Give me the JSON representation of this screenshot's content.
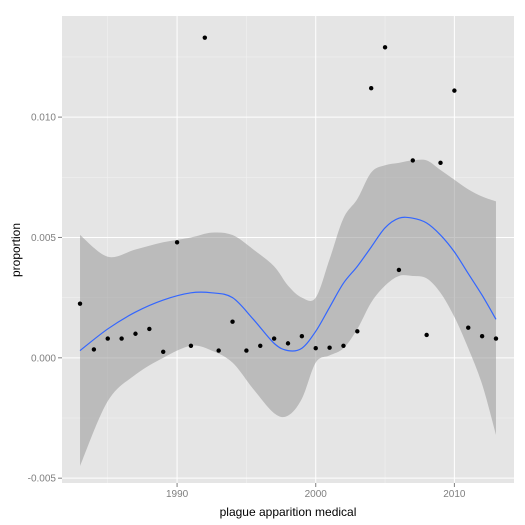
{
  "chart_data": {
    "type": "scatter",
    "title": "",
    "xlabel": "plague apparition medical",
    "ylabel": "proportion",
    "xlim": [
      1981.7,
      2014.3
    ],
    "ylim": [
      -0.0052,
      0.0142
    ],
    "x_ticks": [
      1990,
      2000,
      2010
    ],
    "x_tick_labels": [
      "1990",
      "2000",
      "2010"
    ],
    "y_ticks": [
      -0.005,
      0.0,
      0.005,
      0.01
    ],
    "y_tick_labels": [
      "-0.005",
      "0.000",
      "0.005",
      "0.010"
    ],
    "grid": true,
    "legend": "none",
    "points": {
      "x": [
        1983,
        1984,
        1985,
        1986,
        1987,
        1988,
        1989,
        1990,
        1991,
        1992,
        1993,
        1994,
        1995,
        1996,
        1997,
        1998,
        1999,
        2000,
        2001,
        2002,
        2003,
        2004,
        2005,
        2006,
        2007,
        2008,
        2009,
        2010,
        2011,
        2012,
        2013
      ],
      "y": [
        0.00225,
        0.00035,
        0.0008,
        0.0008,
        0.001,
        0.0012,
        0.00025,
        0.0048,
        0.0005,
        0.0133,
        0.0003,
        0.0015,
        0.0003,
        0.0005,
        0.0008,
        0.0006,
        0.0009,
        0.0004,
        0.00042,
        0.0005,
        0.0011,
        0.0112,
        0.0129,
        0.00365,
        0.0082,
        0.00095,
        0.0081,
        0.0111,
        0.00125,
        0.0009,
        0.0008
      ]
    },
    "smooth": {
      "x": [
        1983,
        1985,
        1987,
        1989,
        1991,
        1992.5,
        1994,
        1995.5,
        1997,
        1998,
        1999,
        2000,
        2001,
        2002,
        2003,
        2004,
        2005,
        2006,
        2007,
        2008,
        2009,
        2010,
        2011,
        2012,
        2013
      ],
      "y": [
        0.0003,
        0.0012,
        0.0019,
        0.0024,
        0.0027,
        0.0027,
        0.0025,
        0.0016,
        0.0006,
        0.0003,
        0.0004,
        0.0011,
        0.0021,
        0.0031,
        0.0038,
        0.0046,
        0.0054,
        0.0058,
        0.0058,
        0.0056,
        0.0051,
        0.0044,
        0.0035,
        0.0026,
        0.0016
      ],
      "upper": [
        0.0051,
        0.0042,
        0.0045,
        0.0048,
        0.005,
        0.0052,
        0.0051,
        0.0045,
        0.0038,
        0.003,
        0.0025,
        0.0025,
        0.0041,
        0.0058,
        0.0066,
        0.0077,
        0.008,
        0.0081,
        0.0082,
        0.0082,
        0.0078,
        0.0074,
        0.007,
        0.0067,
        0.0065
      ],
      "lower": [
        -0.0045,
        -0.0018,
        -0.0007,
        0.0,
        0.0005,
        0.0003,
        -0.0002,
        -0.0013,
        -0.0023,
        -0.0024,
        -0.0017,
        -0.0002,
        0.0001,
        0.0004,
        0.0012,
        0.0023,
        0.003,
        0.0034,
        0.0034,
        0.0033,
        0.0027,
        0.0017,
        0.0004,
        -0.0011,
        -0.0032
      ]
    },
    "colors": {
      "panel": "#e5e5e5",
      "grid_major": "#ffffff",
      "grid_minor": "#f2f2f2",
      "point": "#000000",
      "line": "#3366ff",
      "ribbon": "#999999"
    }
  }
}
